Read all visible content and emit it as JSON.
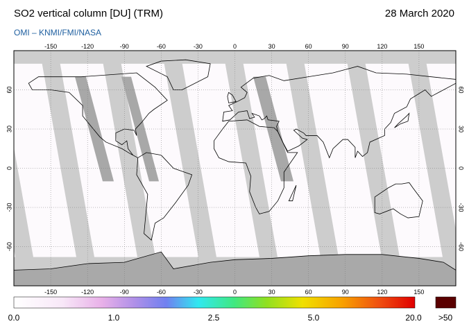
{
  "header": {
    "title": "SO2 vertical column [DU] (TRM)",
    "date": "28 March 2020",
    "source": "OMI  –  KNMI/FMI/NASA"
  },
  "map": {
    "lon_ticks": [
      -150,
      -120,
      -90,
      -60,
      -30,
      0,
      30,
      60,
      90,
      120,
      150
    ],
    "lat_ticks": [
      60,
      30,
      0,
      -30,
      -60
    ]
  },
  "colorbar": {
    "labels": [
      "0.0",
      "1.0",
      "2.5",
      "5.0",
      "20.0",
      ">50"
    ]
  }
}
